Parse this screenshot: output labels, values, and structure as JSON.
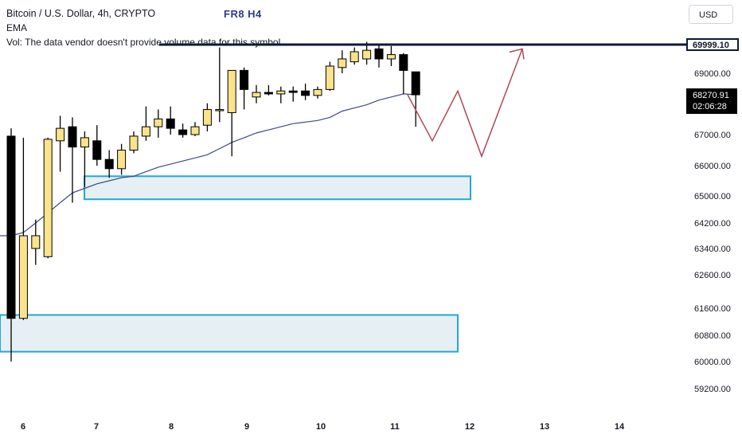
{
  "header": {
    "title": "Bitcoin / U.S. Dollar, 4h, CRYPTO",
    "ema_label": "EMA",
    "volume_note": "Vol: The data vendor doesn't provide volume data for this symbol",
    "watermark": "FR8 H4"
  },
  "toolbar": {
    "currency": "USD"
  },
  "price_labels": {
    "resistance": "69999.10",
    "last_price": "68270.91",
    "countdown": "02:06:28"
  },
  "colors": {
    "bull_candle": "#fbe38b",
    "bear_candle": "#000000",
    "ema_line": "#3c4a86",
    "zone_border": "#22a7d6",
    "zone_fill": "#e6eff3",
    "projection": "#b04856",
    "resistance_line": "#0e1a38"
  },
  "chart_data": {
    "type": "candlestick",
    "symbol": "Bitcoin / U.S. Dollar",
    "timeframe": "4h",
    "y_ticks": [
      "69000.00",
      "67000.00",
      "66000.00",
      "65000.00",
      "64200.00",
      "63400.00",
      "62600.00",
      "61600.00",
      "60800.00",
      "60000.00",
      "59200.00"
    ],
    "x_ticks": [
      "6",
      "7",
      "8",
      "9",
      "10",
      "11",
      "12",
      "13",
      "14"
    ],
    "candles": [
      {
        "o": 66950,
        "h": 67200,
        "l": 60000,
        "c": 61300
      },
      {
        "o": 61300,
        "h": 66900,
        "l": 61250,
        "c": 63800
      },
      {
        "o": 63400,
        "h": 64300,
        "l": 62900,
        "c": 63800
      },
      {
        "o": 63150,
        "h": 66900,
        "l": 63100,
        "c": 66850
      },
      {
        "o": 66800,
        "h": 67600,
        "l": 65800,
        "c": 67200
      },
      {
        "o": 67250,
        "h": 67550,
        "l": 64800,
        "c": 66600
      },
      {
        "o": 66600,
        "h": 67100,
        "l": 65300,
        "c": 66900
      },
      {
        "o": 66800,
        "h": 67300,
        "l": 66000,
        "c": 66200
      },
      {
        "o": 66200,
        "h": 66500,
        "l": 65600,
        "c": 65900
      },
      {
        "o": 65900,
        "h": 66700,
        "l": 65700,
        "c": 66500
      },
      {
        "o": 66500,
        "h": 67100,
        "l": 66400,
        "c": 66950
      },
      {
        "o": 66950,
        "h": 67900,
        "l": 66800,
        "c": 67250
      },
      {
        "o": 67250,
        "h": 67800,
        "l": 66900,
        "c": 67500
      },
      {
        "o": 67500,
        "h": 67900,
        "l": 67000,
        "c": 67200
      },
      {
        "o": 67150,
        "h": 67350,
        "l": 66900,
        "c": 67000
      },
      {
        "o": 67000,
        "h": 67400,
        "l": 66950,
        "c": 67250
      },
      {
        "o": 67300,
        "h": 68000,
        "l": 67100,
        "c": 67800
      },
      {
        "o": 67800,
        "h": 69900,
        "l": 67400,
        "c": 67800
      },
      {
        "o": 67700,
        "h": 69100,
        "l": 66300,
        "c": 69100
      },
      {
        "o": 69100,
        "h": 69200,
        "l": 67800,
        "c": 68450
      },
      {
        "o": 68200,
        "h": 68600,
        "l": 68000,
        "c": 68350
      },
      {
        "o": 68350,
        "h": 68600,
        "l": 68250,
        "c": 68300
      },
      {
        "o": 68300,
        "h": 68550,
        "l": 68000,
        "c": 68400
      },
      {
        "o": 68400,
        "h": 68550,
        "l": 68050,
        "c": 68350
      },
      {
        "o": 68400,
        "h": 68650,
        "l": 68100,
        "c": 68250
      },
      {
        "o": 68250,
        "h": 68550,
        "l": 68150,
        "c": 68450
      },
      {
        "o": 68450,
        "h": 69400,
        "l": 68400,
        "c": 69250
      },
      {
        "o": 69200,
        "h": 69800,
        "l": 69000,
        "c": 69500
      },
      {
        "o": 69400,
        "h": 69900,
        "l": 69300,
        "c": 69750
      },
      {
        "o": 69500,
        "h": 70100,
        "l": 69300,
        "c": 69800
      },
      {
        "o": 69850,
        "h": 70000,
        "l": 69200,
        "c": 69500
      },
      {
        "o": 69500,
        "h": 69950,
        "l": 69250,
        "c": 69650
      },
      {
        "o": 69650,
        "h": 69700,
        "l": 68300,
        "c": 69100
      },
      {
        "o": 69050,
        "h": 69050,
        "l": 67250,
        "c": 68270
      }
    ],
    "ema": [
      63800,
      63900,
      64200,
      64500,
      64800,
      65100,
      65250,
      65400,
      65500,
      65600,
      65650,
      65800,
      65950,
      66050,
      66150,
      66250,
      66350,
      66550,
      66750,
      66900,
      67050,
      67150,
      67250,
      67350,
      67400,
      67450,
      67550,
      67750,
      67850,
      67950,
      68100,
      68200,
      68300,
      68270
    ],
    "resistance": 69999.1,
    "last_price": 68270.91,
    "zones": [
      {
        "top": 65650,
        "bottom": 64900
      },
      {
        "top": 61400,
        "bottom": 60300
      }
    ],
    "projection_path": [
      68270,
      66800,
      68400,
      66300,
      69850
    ]
  }
}
